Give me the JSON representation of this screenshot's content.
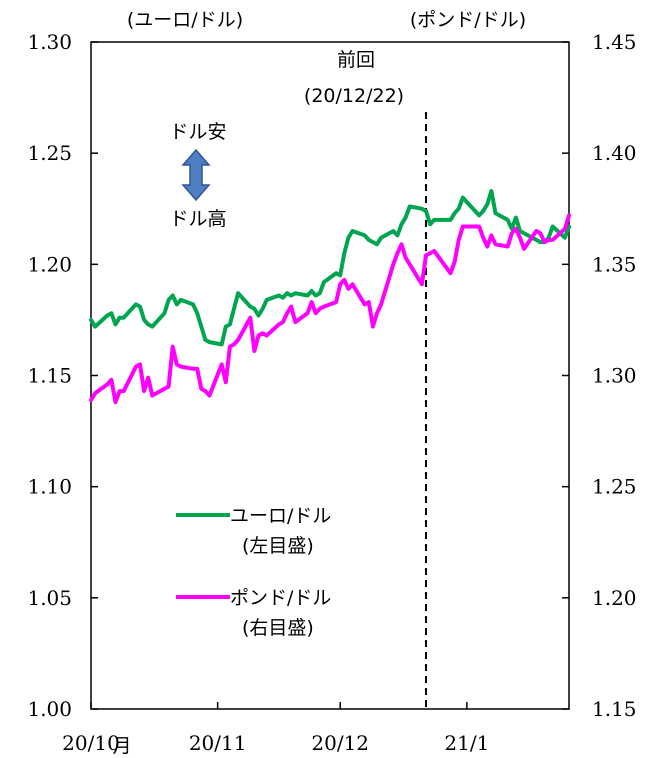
{
  "chart_data": {
    "type": "line",
    "left_axis_unit": "(ユーロ/ドル)",
    "right_axis_unit": "(ポンド/ドル)",
    "left_ylim": [
      1.0,
      1.3
    ],
    "right_ylim": [
      1.15,
      1.45
    ],
    "left_ticks": [
      "1.00",
      "1.05",
      "1.10",
      "1.15",
      "1.20",
      "1.25",
      "1.30"
    ],
    "right_ticks": [
      "1.15",
      "1.20",
      "1.25",
      "1.30",
      "1.35",
      "1.40",
      "1.45"
    ],
    "x_tick_labels": [
      "20/10",
      "20/11",
      "20/12",
      "21/1"
    ],
    "x_unit": "月",
    "xlim": [
      "2020-10-01",
      "2021-01-26"
    ],
    "grid": false,
    "annotation": {
      "date": "2020-12-22",
      "label_line1": "前回",
      "label_line2": "(20/12/22)",
      "style": "dashed"
    },
    "arrow_annotation": {
      "up_label": "ドル安",
      "down_label": "ドル高",
      "color": "#4f7ec2"
    },
    "series": [
      {
        "name": "ユーロ/ドル",
        "legend_line2": "(左目盛)",
        "axis": "left",
        "color": "#00a550",
        "x": [
          "2020-10-01",
          "2020-10-02",
          "2020-10-05",
          "2020-10-06",
          "2020-10-07",
          "2020-10-08",
          "2020-10-09",
          "2020-10-12",
          "2020-10-13",
          "2020-10-14",
          "2020-10-15",
          "2020-10-16",
          "2020-10-19",
          "2020-10-20",
          "2020-10-21",
          "2020-10-22",
          "2020-10-23",
          "2020-10-26",
          "2020-10-27",
          "2020-10-28",
          "2020-10-29",
          "2020-10-30",
          "2020-11-02",
          "2020-11-03",
          "2020-11-04",
          "2020-11-05",
          "2020-11-06",
          "2020-11-09",
          "2020-11-10",
          "2020-11-11",
          "2020-11-12",
          "2020-11-13",
          "2020-11-16",
          "2020-11-17",
          "2020-11-18",
          "2020-11-19",
          "2020-11-20",
          "2020-11-23",
          "2020-11-24",
          "2020-11-25",
          "2020-11-26",
          "2020-11-27",
          "2020-11-30",
          "2020-12-01",
          "2020-12-02",
          "2020-12-03",
          "2020-12-04",
          "2020-12-07",
          "2020-12-08",
          "2020-12-09",
          "2020-12-10",
          "2020-12-11",
          "2020-12-14",
          "2020-12-15",
          "2020-12-16",
          "2020-12-17",
          "2020-12-18",
          "2020-12-21",
          "2020-12-22",
          "2020-12-23",
          "2020-12-24",
          "2020-12-28",
          "2020-12-29",
          "2020-12-30",
          "2020-12-31",
          "2021-01-04",
          "2021-01-05",
          "2021-01-06",
          "2021-01-07",
          "2021-01-08",
          "2021-01-11",
          "2021-01-12",
          "2021-01-13",
          "2021-01-14",
          "2021-01-15",
          "2021-01-18",
          "2021-01-19",
          "2021-01-20",
          "2021-01-21",
          "2021-01-22",
          "2021-01-25",
          "2021-01-26"
        ],
        "values": [
          1.175,
          1.172,
          1.177,
          1.178,
          1.173,
          1.176,
          1.176,
          1.182,
          1.181,
          1.175,
          1.173,
          1.172,
          1.178,
          1.184,
          1.186,
          1.182,
          1.184,
          1.182,
          1.178,
          1.172,
          1.166,
          1.165,
          1.164,
          1.172,
          1.173,
          1.18,
          1.187,
          1.181,
          1.18,
          1.177,
          1.18,
          1.184,
          1.186,
          1.185,
          1.187,
          1.186,
          1.187,
          1.186,
          1.188,
          1.186,
          1.187,
          1.192,
          1.196,
          1.195,
          1.205,
          1.212,
          1.215,
          1.213,
          1.211,
          1.21,
          1.209,
          1.212,
          1.215,
          1.213,
          1.218,
          1.221,
          1.226,
          1.225,
          1.224,
          1.218,
          1.22,
          1.22,
          1.223,
          1.225,
          1.23,
          1.222,
          1.224,
          1.227,
          1.233,
          1.223,
          1.22,
          1.216,
          1.221,
          1.215,
          1.214,
          1.211,
          1.21,
          1.21,
          1.212,
          1.217,
          1.212,
          1.217
        ]
      },
      {
        "name": "ポンド/ドル",
        "legend_line2": "(右目盛)",
        "axis": "right",
        "color": "#ff00ff",
        "x": [
          "2020-10-01",
          "2020-10-02",
          "2020-10-05",
          "2020-10-06",
          "2020-10-07",
          "2020-10-08",
          "2020-10-09",
          "2020-10-12",
          "2020-10-13",
          "2020-10-14",
          "2020-10-15",
          "2020-10-16",
          "2020-10-19",
          "2020-10-20",
          "2020-10-21",
          "2020-10-22",
          "2020-10-23",
          "2020-10-26",
          "2020-10-27",
          "2020-10-28",
          "2020-10-29",
          "2020-10-30",
          "2020-11-02",
          "2020-11-03",
          "2020-11-04",
          "2020-11-05",
          "2020-11-06",
          "2020-11-09",
          "2020-11-10",
          "2020-11-11",
          "2020-11-12",
          "2020-11-13",
          "2020-11-16",
          "2020-11-17",
          "2020-11-18",
          "2020-11-19",
          "2020-11-20",
          "2020-11-23",
          "2020-11-24",
          "2020-11-25",
          "2020-11-26",
          "2020-11-27",
          "2020-11-30",
          "2020-12-01",
          "2020-12-02",
          "2020-12-03",
          "2020-12-04",
          "2020-12-07",
          "2020-12-08",
          "2020-12-09",
          "2020-12-10",
          "2020-12-11",
          "2020-12-14",
          "2020-12-15",
          "2020-12-16",
          "2020-12-17",
          "2020-12-18",
          "2020-12-21",
          "2020-12-22",
          "2020-12-23",
          "2020-12-24",
          "2020-12-28",
          "2020-12-29",
          "2020-12-30",
          "2020-12-31",
          "2021-01-04",
          "2021-01-05",
          "2021-01-06",
          "2021-01-07",
          "2021-01-08",
          "2021-01-11",
          "2021-01-12",
          "2021-01-13",
          "2021-01-14",
          "2021-01-15",
          "2021-01-18",
          "2021-01-19",
          "2021-01-20",
          "2021-01-21",
          "2021-01-22",
          "2021-01-25",
          "2021-01-26"
        ],
        "values": [
          1.289,
          1.292,
          1.296,
          1.298,
          1.288,
          1.293,
          1.293,
          1.304,
          1.305,
          1.293,
          1.299,
          1.291,
          1.294,
          1.295,
          1.313,
          1.305,
          1.304,
          1.303,
          1.303,
          1.294,
          1.293,
          1.291,
          1.305,
          1.297,
          1.313,
          1.314,
          1.316,
          1.326,
          1.311,
          1.318,
          1.319,
          1.318,
          1.323,
          1.324,
          1.328,
          1.331,
          1.324,
          1.328,
          1.333,
          1.328,
          1.33,
          1.331,
          1.333,
          1.341,
          1.343,
          1.339,
          1.341,
          1.332,
          1.333,
          1.322,
          1.328,
          1.332,
          1.35,
          1.355,
          1.359,
          1.353,
          1.35,
          1.341,
          1.354,
          1.355,
          1.356,
          1.346,
          1.351,
          1.361,
          1.367,
          1.367,
          1.362,
          1.358,
          1.363,
          1.359,
          1.358,
          1.364,
          1.366,
          1.362,
          1.357,
          1.365,
          1.364,
          1.36,
          1.361,
          1.361,
          1.366,
          1.372
        ]
      }
    ]
  }
}
